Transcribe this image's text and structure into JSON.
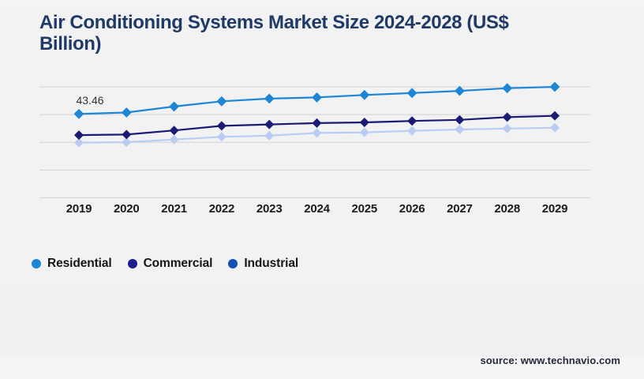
{
  "page": {
    "title_line1": "Air Conditioning Systems Market Size 2024-2028 (US$",
    "title_line2": "Billion)",
    "source": "source: www.technavio.com"
  },
  "colors": {
    "background": "#f2f2f3",
    "title_text": "#203a68",
    "gridline": "#d3d3d5",
    "axis_label_text": "#1b1b1b",
    "legend_text": "#161616",
    "annotation_text": "#333333",
    "source_text": "#23283a"
  },
  "chart_data": {
    "type": "line",
    "title": "Air Conditioning Systems Market Size 2024-2028 (US$ Billion)",
    "xlabel": "",
    "ylabel": "",
    "grid": "horizontal",
    "gridline_count": 5,
    "y_axis_labels_visible": false,
    "ylim": [
      0,
      57.5
    ],
    "legend_position": "bottom-left",
    "marker_shape": "diamond",
    "categories": [
      "2019",
      "2020",
      "2021",
      "2022",
      "2023",
      "2024",
      "2025",
      "2026",
      "2027",
      "2028",
      "2029"
    ],
    "series": [
      {
        "name": "Residential",
        "line_color": "#1d87d6",
        "legend_color": "#1d87d6",
        "values": [
          43.46,
          44.2,
          47.3,
          50.0,
          51.4,
          52.0,
          53.3,
          54.3,
          55.4,
          56.8,
          57.5
        ]
      },
      {
        "name": "Commercial",
        "line_color": "#1b1b74",
        "legend_color": "#1e1e8f",
        "values": [
          32.5,
          32.8,
          34.9,
          37.3,
          38.0,
          38.7,
          39.1,
          39.8,
          40.4,
          41.8,
          42.5
        ]
      },
      {
        "name": "Industrial",
        "line_color": "#b9cdf3",
        "legend_color": "#1550b4",
        "values": [
          28.6,
          28.8,
          30.2,
          31.6,
          32.2,
          33.6,
          33.9,
          34.7,
          35.4,
          35.9,
          36.3
        ]
      }
    ],
    "annotations": [
      {
        "series": "Residential",
        "category": "2019",
        "text": "43.46"
      }
    ]
  }
}
